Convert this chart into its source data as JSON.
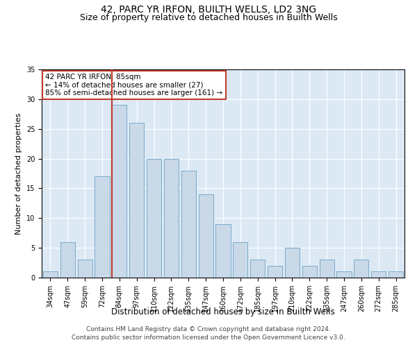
{
  "title": "42, PARC YR IRFON, BUILTH WELLS, LD2 3NG",
  "subtitle": "Size of property relative to detached houses in Builth Wells",
  "xlabel": "Distribution of detached houses by size in Builth Wells",
  "ylabel": "Number of detached properties",
  "categories": [
    "34sqm",
    "47sqm",
    "59sqm",
    "72sqm",
    "84sqm",
    "97sqm",
    "110sqm",
    "122sqm",
    "135sqm",
    "147sqm",
    "160sqm",
    "172sqm",
    "185sqm",
    "197sqm",
    "210sqm",
    "222sqm",
    "235sqm",
    "247sqm",
    "260sqm",
    "272sqm",
    "285sqm"
  ],
  "values": [
    1,
    6,
    3,
    17,
    29,
    26,
    20,
    20,
    18,
    14,
    9,
    6,
    3,
    2,
    5,
    2,
    3,
    1,
    3,
    1,
    1
  ],
  "bar_color": "#c9d9e8",
  "bar_edge_color": "#7aaac8",
  "vline_x_index": 4,
  "vline_color": "#c0392b",
  "annotation_text": "42 PARC YR IRFON: 85sqm\n← 14% of detached houses are smaller (27)\n85% of semi-detached houses are larger (161) →",
  "annotation_box_color": "#c0392b",
  "ylim": [
    0,
    35
  ],
  "yticks": [
    0,
    5,
    10,
    15,
    20,
    25,
    30,
    35
  ],
  "plot_bg_color": "#dce9f5",
  "footer1": "Contains HM Land Registry data © Crown copyright and database right 2024.",
  "footer2": "Contains public sector information licensed under the Open Government Licence v3.0.",
  "title_fontsize": 10,
  "subtitle_fontsize": 9,
  "xlabel_fontsize": 8.5,
  "ylabel_fontsize": 8,
  "tick_fontsize": 7,
  "annot_fontsize": 7.5,
  "footer_fontsize": 6.5
}
